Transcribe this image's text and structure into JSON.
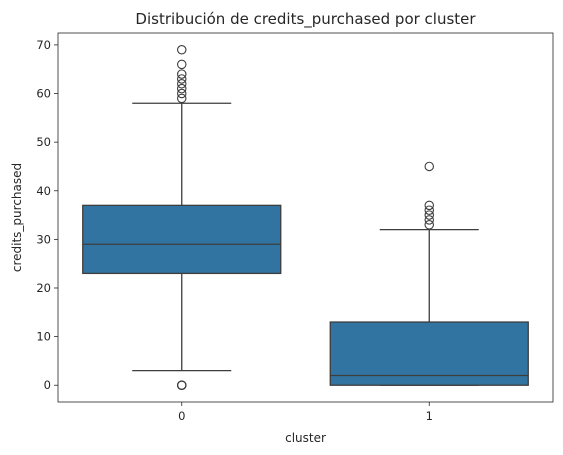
{
  "chart_data": {
    "type": "box",
    "title": "Distribución de credits_purchased por cluster",
    "xlabel": "cluster",
    "ylabel": "credits_purchased",
    "categories": [
      "0",
      "1"
    ],
    "ylim": [
      -3.45,
      72.45
    ],
    "yticks": [
      0,
      10,
      20,
      30,
      40,
      50,
      60,
      70
    ],
    "grid": false,
    "box_color": "#3274a1",
    "line_color": "#3d3d3d",
    "boxes": [
      {
        "category": "0",
        "whisker_low": 3,
        "q1": 23,
        "median": 29,
        "q3": 37,
        "whisker_high": 58,
        "outliers": [
          0,
          0,
          0,
          59,
          60,
          61,
          62,
          63,
          64,
          66,
          69
        ]
      },
      {
        "category": "1",
        "whisker_low": 0,
        "q1": 0,
        "median": 2,
        "q3": 13,
        "whisker_high": 32,
        "outliers": [
          33,
          34,
          35,
          36,
          37,
          45
        ]
      }
    ]
  }
}
